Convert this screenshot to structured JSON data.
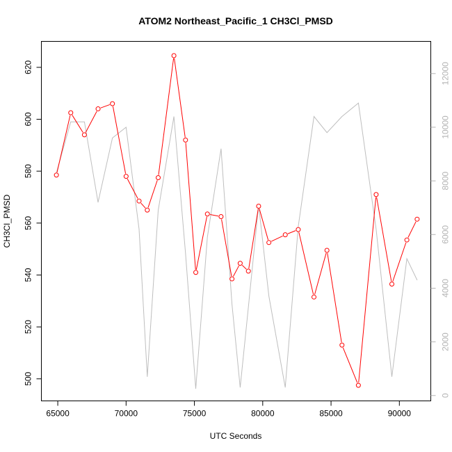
{
  "chart_data": {
    "type": "line",
    "title": "ATOM2 Northeast_Pacific_1 CH3Cl_PMSD",
    "xlabel": "UTC Seconds",
    "ylabel": "CH3Cl_PMSD",
    "ylabel_right": "",
    "xlim": [
      63800,
      92300
    ],
    "ylim": [
      491.5,
      630
    ],
    "ylim_right": [
      -200,
      13200
    ],
    "x_ticks": [
      65000,
      70000,
      75000,
      80000,
      85000,
      90000
    ],
    "y_ticks": [
      500,
      520,
      540,
      560,
      580,
      600,
      620
    ],
    "y_ticks_right": [
      0,
      2000,
      4000,
      6000,
      8000,
      10000,
      12000
    ],
    "grid": false,
    "colors": {
      "primary_series": "#ff0000",
      "secondary_series": "#bebebe",
      "right_axis": "#b3b3b3"
    },
    "series": [
      {
        "axis": "left",
        "style": "points-and-lines",
        "x": [
          64900,
          65950,
          66950,
          67950,
          69000,
          70000,
          70950,
          71550,
          72350,
          73500,
          74350,
          75100,
          75950,
          76950,
          77750,
          78350,
          78950,
          79700,
          80450,
          81650,
          82600,
          83750,
          84700,
          85800,
          87000,
          88300,
          89450,
          90550,
          91300
        ],
        "y": [
          578.5,
          602.5,
          594,
          604,
          606,
          578,
          568.5,
          565,
          577.5,
          624.5,
          592,
          541,
          563.5,
          562.5,
          538.5,
          544.5,
          541.5,
          566.5,
          552.5,
          555.5,
          557.5,
          531.5,
          549.5,
          513,
          497.5,
          571,
          536.5,
          553.5,
          561.5
        ]
      },
      {
        "axis": "right",
        "style": "line",
        "x": [
          64900,
          65950,
          66950,
          67950,
          69000,
          70000,
          70950,
          71550,
          72350,
          73500,
          74350,
          75100,
          75950,
          76950,
          77750,
          78350,
          78950,
          79700,
          80450,
          81650,
          82600,
          83750,
          84700,
          85800,
          87000,
          88300,
          89450,
          90550,
          91300
        ],
        "y": [
          8300,
          10200,
          10200,
          7200,
          9600,
          10000,
          6200,
          700,
          6900,
          10400,
          5300,
          250,
          5900,
          9200,
          3400,
          300,
          3300,
          7100,
          3700,
          300,
          6300,
          10400,
          9800,
          10400,
          10900,
          6200,
          700,
          5100,
          4300
        ]
      }
    ]
  }
}
